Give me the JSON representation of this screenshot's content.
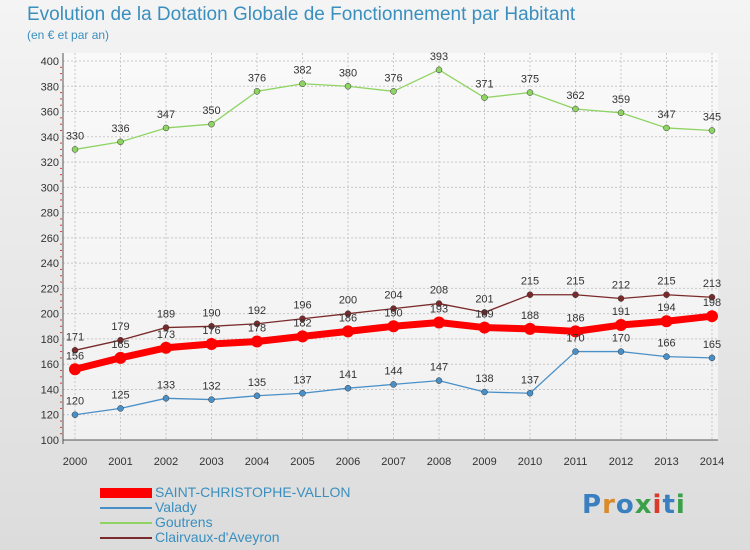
{
  "chart_data": {
    "type": "line",
    "title": "Evolution de la Dotation Globale de Fonctionnement par Habitant",
    "subtitle": "(en € et par an)",
    "categories": [
      "2000",
      "2001",
      "2002",
      "2003",
      "2004",
      "2005",
      "2006",
      "2007",
      "2008",
      "2009",
      "2010",
      "2011",
      "2012",
      "2013",
      "2014"
    ],
    "ylim": [
      100,
      400
    ],
    "yticks": [
      100,
      120,
      140,
      160,
      180,
      200,
      220,
      240,
      260,
      280,
      300,
      320,
      340,
      360,
      380,
      400
    ],
    "grid": true,
    "legend_position": "bottom-left",
    "series": [
      {
        "name": "SAINT-CHRISTOPHE-VALLON",
        "color": "#ff0000",
        "values": [
          156,
          165,
          173,
          176,
          178,
          182,
          186,
          190,
          193,
          189,
          188,
          186,
          191,
          194,
          198
        ],
        "labels": [
          "156",
          "165",
          "173",
          "176",
          "178",
          "182",
          "186",
          "190",
          "193",
          "189",
          "188",
          "186",
          "191",
          "194",
          "198"
        ]
      },
      {
        "name": "Valady",
        "color": "#4a90c8",
        "values": [
          120,
          125,
          133,
          132,
          135,
          137,
          141,
          144,
          147,
          138,
          137,
          170,
          170,
          166,
          165
        ],
        "labels": [
          "120",
          "125",
          "133",
          "132",
          "135",
          "137",
          "141",
          "144",
          "147",
          "138",
          "137",
          "170",
          "170",
          "166",
          "165"
        ]
      },
      {
        "name": "Goutrens",
        "color": "#8fd463",
        "values": [
          330,
          336,
          347,
          350,
          376,
          382,
          380,
          376,
          393,
          371,
          375,
          362,
          359,
          347,
          345
        ],
        "labels": [
          "330",
          "336",
          "347",
          "350",
          "376",
          "382",
          "380",
          "376",
          "393",
          "371",
          "375",
          "362",
          "359",
          "347",
          "345"
        ]
      },
      {
        "name": "Clairvaux-d'Aveyron",
        "color": "#7a2a2a",
        "values": [
          171,
          179,
          189,
          190,
          192,
          196,
          200,
          204,
          208,
          201,
          215,
          215,
          212,
          215,
          213
        ],
        "labels": [
          "171",
          "179",
          "189",
          "190",
          "192",
          "196",
          "200",
          "204",
          "208",
          "201",
          "215",
          "215",
          "212",
          "215",
          "213"
        ]
      }
    ]
  },
  "logo": {
    "text": "Proxiti",
    "letters": [
      "P",
      "r",
      "o",
      "x",
      "i",
      "t",
      "i"
    ],
    "colors": [
      "#3a7fc0",
      "#d98a2b",
      "#3a7fc0",
      "#3aa04a",
      "#d93a2b",
      "#3a7fc0",
      "#3aa04a"
    ]
  }
}
